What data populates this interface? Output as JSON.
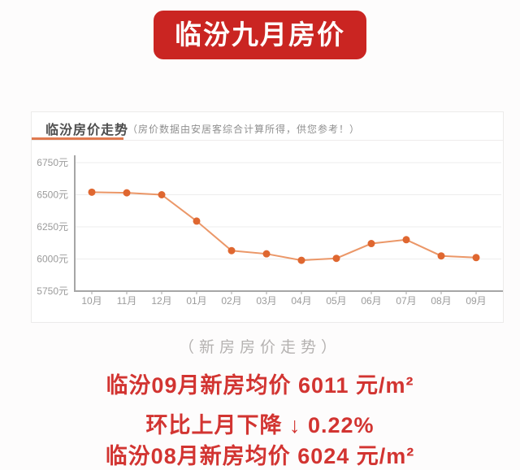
{
  "banner": {
    "title": "临汾九月房价"
  },
  "chart_card": {
    "title": "临汾房价走势",
    "note": "（房价数据由安居客综合计算所得，供您参考！）"
  },
  "chart_data": {
    "type": "line",
    "title": "临汾房价走势（新房房价走势）",
    "categories": [
      "10月",
      "11月",
      "12月",
      "01月",
      "02月",
      "03月",
      "04月",
      "05月",
      "06月",
      "07月",
      "08月",
      "09月"
    ],
    "values": [
      6520,
      6515,
      6500,
      6295,
      6065,
      6040,
      5990,
      6005,
      6120,
      6150,
      6024,
      6011
    ],
    "xlabel": "",
    "ylabel": "",
    "ylim": [
      5750,
      6750
    ],
    "yticks": [
      6750,
      6500,
      6250,
      6000,
      5750
    ],
    "ytick_suffix": "元",
    "grid": true,
    "legend_position": "none",
    "line_color": "#eb9768",
    "point_color": "#df6730",
    "grid_color": "#ededed",
    "axis_color": "#a6a6a6",
    "tick_label_color": "#9b9b9b"
  },
  "footer": {
    "subtitle": "（新房房价走势）",
    "lines": [
      "临汾09月新房均价 6011 元/m²",
      "环比上月下降 ↓ 0.22%",
      "临汾08月新房均价 6024 元/m²"
    ]
  }
}
